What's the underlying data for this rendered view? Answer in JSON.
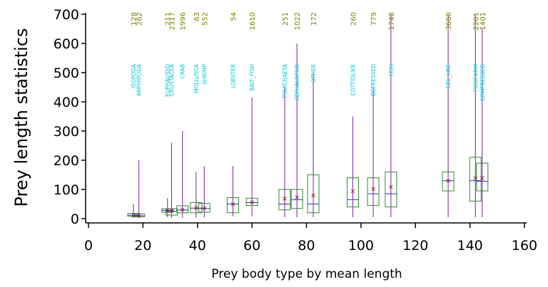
{
  "chart_data": {
    "type": "box",
    "title": "",
    "xlabel": "Prey body type by mean length",
    "ylabel": "Prey length statistics",
    "xlim": [
      0,
      160
    ],
    "ylim": [
      0,
      700
    ],
    "xticks": [
      0,
      20,
      40,
      60,
      80,
      100,
      120,
      140,
      160
    ],
    "yticks": [
      0,
      100,
      200,
      300,
      400,
      500,
      600,
      700
    ],
    "grid": false,
    "colors": {
      "box": "#2e8b2e",
      "whisker": "#7a1fa2",
      "median": "#3030c0",
      "mean_marker": "#a01818",
      "count_label": "#808000",
      "category_label": "#00c8d8",
      "axis": "#000000"
    },
    "categories": [
      {
        "name": "ISOPODA",
        "x": 16.5,
        "n": "128",
        "q1": 8,
        "median": 12,
        "q3": 18,
        "min": 2,
        "max": 50,
        "mean": 12
      },
      {
        "name": "AMPHIPODA",
        "x": 18.5,
        "n": "262",
        "q1": 6,
        "median": 10,
        "q3": 16,
        "min": 2,
        "max": 200,
        "mean": 11
      },
      {
        "name": "EUPHAUSIID",
        "x": 29,
        "n": "211",
        "q1": 22,
        "median": 28,
        "q3": 34,
        "min": 5,
        "max": 70,
        "mean": 29
      },
      {
        "name": "CRUSTACEA",
        "x": 30.5,
        "n": "2317",
        "q1": 12,
        "median": 25,
        "q3": 34,
        "min": 3,
        "max": 260,
        "mean": 28
      },
      {
        "name": "CRAB",
        "x": 34.5,
        "n": "1996",
        "q1": 20,
        "median": 30,
        "q3": 44,
        "min": 3,
        "max": 300,
        "mean": 32
      },
      {
        "name": "MOLLUSCA",
        "x": 39.5,
        "n": "63",
        "q1": 20,
        "median": 36,
        "q3": 55,
        "min": 3,
        "max": 160,
        "mean": 38
      },
      {
        "name": "SHRIMP",
        "x": 42.5,
        "n": "552",
        "q1": 22,
        "median": 35,
        "q3": 52,
        "min": 4,
        "max": 180,
        "mean": 37
      },
      {
        "name": "LOBSTER",
        "x": 53,
        "n": "54",
        "q1": 20,
        "median": 50,
        "q3": 72,
        "min": 8,
        "max": 180,
        "mean": 50
      },
      {
        "name": "BAIT_FISH",
        "x": 60,
        "n": "1610",
        "q1": 45,
        "median": 55,
        "q3": 70,
        "min": 8,
        "max": 415,
        "mean": 57
      },
      {
        "name": "POLYCHAETA",
        "x": 72,
        "n": "251",
        "q1": 30,
        "median": 50,
        "q3": 100,
        "min": 5,
        "max": 450,
        "mean": 70
      },
      {
        "name": "CEPHALOPOD",
        "x": 76.5,
        "n": "1022",
        "q1": 35,
        "median": 65,
        "q3": 100,
        "min": 5,
        "max": 600,
        "mean": 75
      },
      {
        "name": "OTHER",
        "x": 82.5,
        "n": "172",
        "q1": 20,
        "median": 50,
        "q3": 150,
        "min": 5,
        "max": 500,
        "mean": 80
      },
      {
        "name": "COTTIDLIKE",
        "x": 97,
        "n": "260",
        "q1": 40,
        "median": 65,
        "q3": 140,
        "min": 5,
        "max": 350,
        "mean": 95
      },
      {
        "name": "DEPRESSED",
        "x": 104.5,
        "n": "779",
        "q1": 45,
        "median": 85,
        "q3": 140,
        "min": 5,
        "max": 450,
        "mean": 102
      },
      {
        "name": "FISH",
        "x": 111,
        "n": "1748",
        "q1": 40,
        "median": 85,
        "q3": 160,
        "min": 5,
        "max": 700,
        "mean": 110
      },
      {
        "name": "EEL_LIKE",
        "x": 132,
        "n": "3660",
        "q1": 95,
        "median": 130,
        "q3": 160,
        "min": 5,
        "max": 700,
        "mean": 130
      },
      {
        "name": "FUSIFORM",
        "x": 142,
        "n": "2281",
        "q1": 60,
        "median": 130,
        "q3": 210,
        "min": 5,
        "max": 700,
        "mean": 140
      },
      {
        "name": "COMPRESSED",
        "x": 144.5,
        "n": "1401",
        "q1": 95,
        "median": 128,
        "q3": 190,
        "min": 5,
        "max": 650,
        "mean": 140
      }
    ]
  }
}
